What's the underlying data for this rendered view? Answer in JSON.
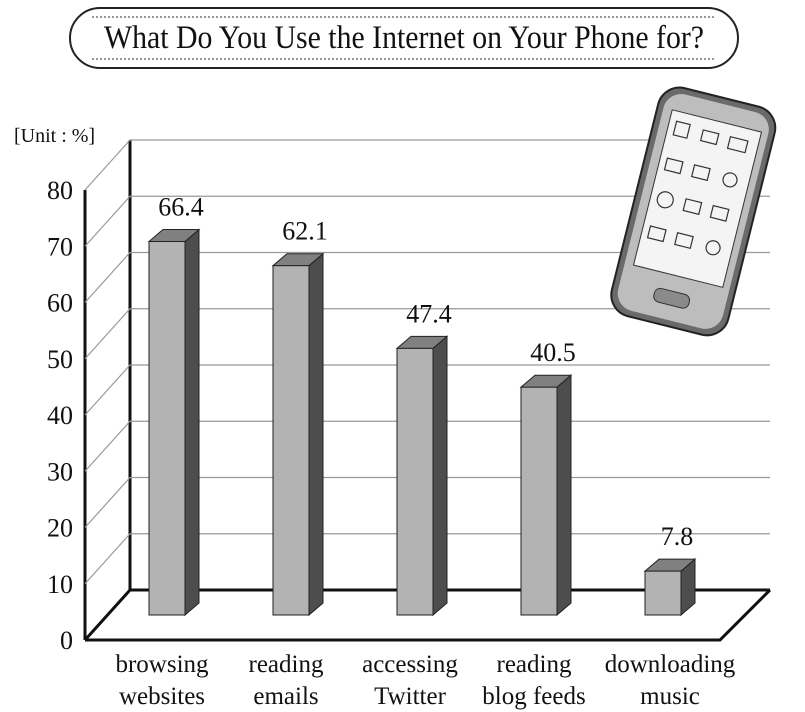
{
  "chart_data": {
    "type": "bar3d",
    "title": "What Do You Use the Internet on Your Phone for?",
    "unit_label": "[Unit : %]",
    "categories": [
      [
        "browsing",
        "websites"
      ],
      [
        "reading",
        "emails"
      ],
      [
        "accessing",
        "Twitter"
      ],
      [
        "reading",
        "blog feeds"
      ],
      [
        "downloading",
        "music"
      ]
    ],
    "values": [
      66.4,
      62.1,
      47.4,
      40.5,
      7.8
    ],
    "ylim": [
      0,
      80
    ],
    "yticks": [
      0,
      10,
      20,
      30,
      40,
      50,
      60,
      70,
      80
    ],
    "grid": true,
    "colors": {
      "front": "#b3b3b3",
      "side": "#4d4d4d",
      "top": "#808080"
    }
  }
}
